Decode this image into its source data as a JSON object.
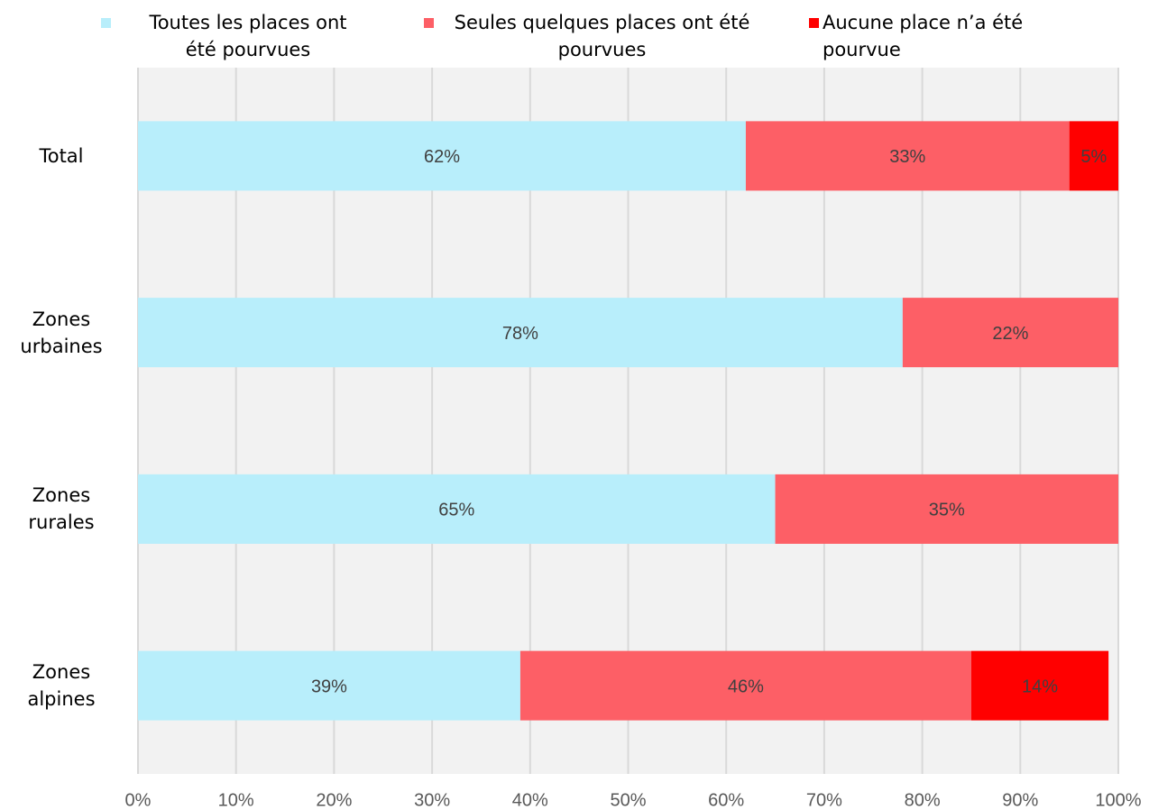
{
  "chart_data": {
    "type": "stacked-bar-horizontal",
    "categories": [
      "Total",
      "Zones urbaines",
      "Zones rurales",
      "Zones alpines"
    ],
    "series": [
      {
        "name": "Toutes les places ont été pourvues",
        "color": "#b8eefb",
        "values": [
          62,
          78,
          65,
          39
        ]
      },
      {
        "name": "Seules quelques places ont été pourvues",
        "color": "#fd5f66",
        "values": [
          33,
          22,
          35,
          46
        ]
      },
      {
        "name": "Aucune place n’a été pourvue",
        "color": "#ff0000",
        "values": [
          5,
          null,
          null,
          14
        ]
      }
    ],
    "value_labels": [
      [
        "62%",
        "78%",
        "65%",
        "39%"
      ],
      [
        "33%",
        "22%",
        "35%",
        "46%"
      ],
      [
        "5%",
        null,
        null,
        "14%"
      ]
    ],
    "xlim": [
      0,
      100
    ],
    "xticks": [
      {
        "value": 0,
        "label": "0%"
      },
      {
        "value": 10,
        "label": "10%"
      },
      {
        "value": 20,
        "label": "20%"
      },
      {
        "value": 30,
        "label": "30%"
      },
      {
        "value": 40,
        "label": "40%"
      },
      {
        "value": 50,
        "label": "50%"
      },
      {
        "value": 60,
        "label": "60%"
      },
      {
        "value": 70,
        "label": "70%"
      },
      {
        "value": 80,
        "label": "80%"
      },
      {
        "value": 90,
        "label": "90%"
      },
      {
        "value": 100,
        "label": "100%"
      }
    ],
    "grid": true,
    "legend": "top"
  }
}
